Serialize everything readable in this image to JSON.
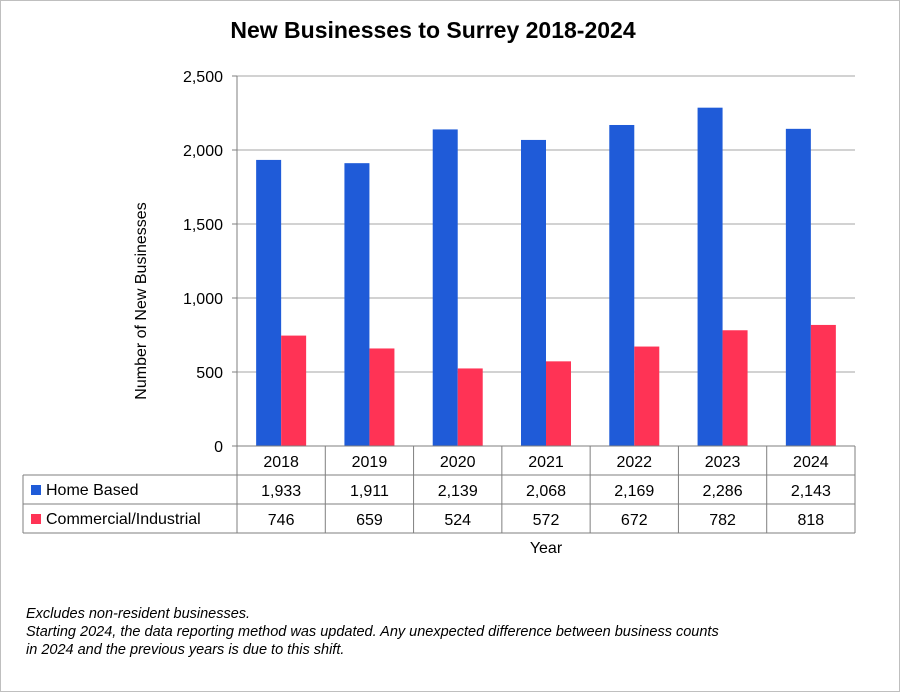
{
  "chart_data": {
    "type": "bar",
    "title": "New Businesses to Surrey 2018-2024",
    "xlabel": "Year",
    "ylabel": "Number of New Businesses",
    "ylim": [
      0,
      2500
    ],
    "yticks": [
      "0",
      "500",
      "1,000",
      "1,500",
      "2,000",
      "2,500"
    ],
    "ytick_values": [
      0,
      500,
      1000,
      1500,
      2000,
      2500
    ],
    "grid": true,
    "legend": "data-table-left",
    "categories": [
      "2018",
      "2019",
      "2020",
      "2021",
      "2022",
      "2023",
      "2024"
    ],
    "series": [
      {
        "name": "Home Based",
        "color": "#1f5bd8",
        "values": [
          1933,
          1911,
          2139,
          2068,
          2169,
          2286,
          2143
        ],
        "labels": [
          "1,933",
          "1,911",
          "2,139",
          "2,068",
          "2,169",
          "2,286",
          "2,143"
        ]
      },
      {
        "name": "Commercial/Industrial",
        "color": "#ff3355",
        "values": [
          746,
          659,
          524,
          572,
          672,
          782,
          818
        ],
        "labels": [
          "746",
          "659",
          "524",
          "572",
          "672",
          "782",
          "818"
        ]
      }
    ]
  },
  "notes": [
    "Excludes non-resident businesses.",
    "Starting 2024, the data reporting method was updated. Any unexpected difference between business counts",
    "in 2024 and the previous years is due to this shift."
  ]
}
